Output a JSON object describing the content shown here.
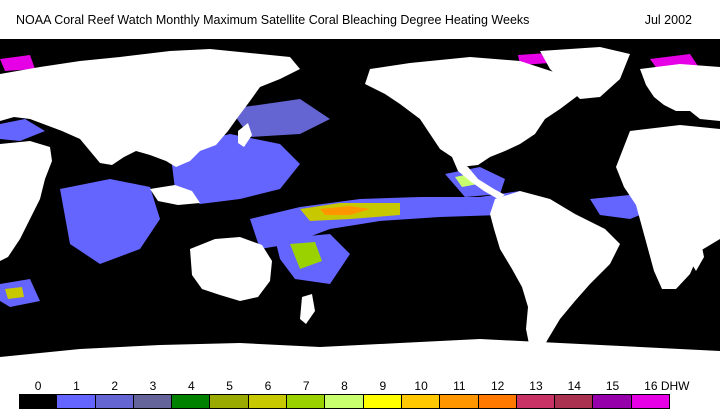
{
  "header": {
    "title": "NOAA Coral Reef Watch Monthly Maximum Satellite Coral Bleaching Degree Heating Weeks",
    "date": "Jul 2002"
  },
  "map": {
    "ocean_color": "#000000",
    "land_color": "#ffffff"
  },
  "legend": {
    "unit": "DHW",
    "ticks": [
      "0",
      "1",
      "2",
      "3",
      "4",
      "5",
      "6",
      "7",
      "8",
      "9",
      "10",
      "11",
      "12",
      "13",
      "14",
      "15",
      "16"
    ],
    "colors": [
      "#000000",
      "#6464ff",
      "#6464d2",
      "#64649a",
      "#008200",
      "#9aaa00",
      "#c8c800",
      "#9ad200",
      "#c8ff6e",
      "#ffff00",
      "#ffc800",
      "#ff9600",
      "#ff7800",
      "#c83264",
      "#aa3250",
      "#9600aa",
      "#e600e6"
    ]
  }
}
